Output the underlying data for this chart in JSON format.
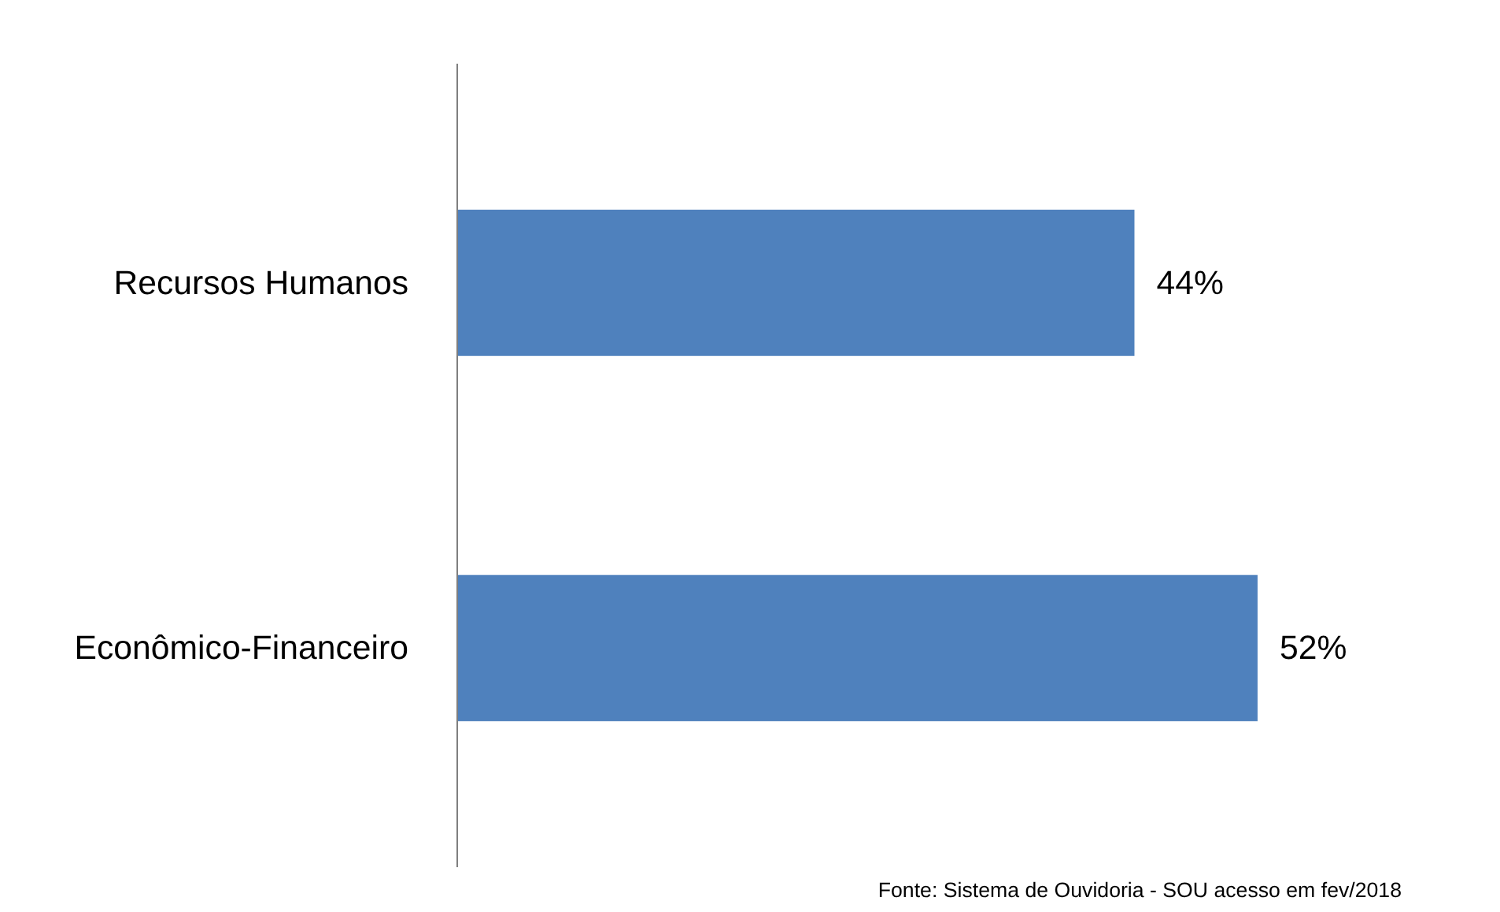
{
  "chart_data": {
    "type": "bar",
    "orientation": "horizontal",
    "categories": [
      "Recursos Humanos",
      "Econômico-Financeiro"
    ],
    "values": [
      44,
      52
    ],
    "color": "#4f81bd",
    "data_labels": true,
    "value_labels": [
      "44%",
      "52%"
    ],
    "grid": false,
    "annotations": [
      "Fonte: Sistema de Ouvidoria - SOU acesso em fev/2018"
    ]
  }
}
